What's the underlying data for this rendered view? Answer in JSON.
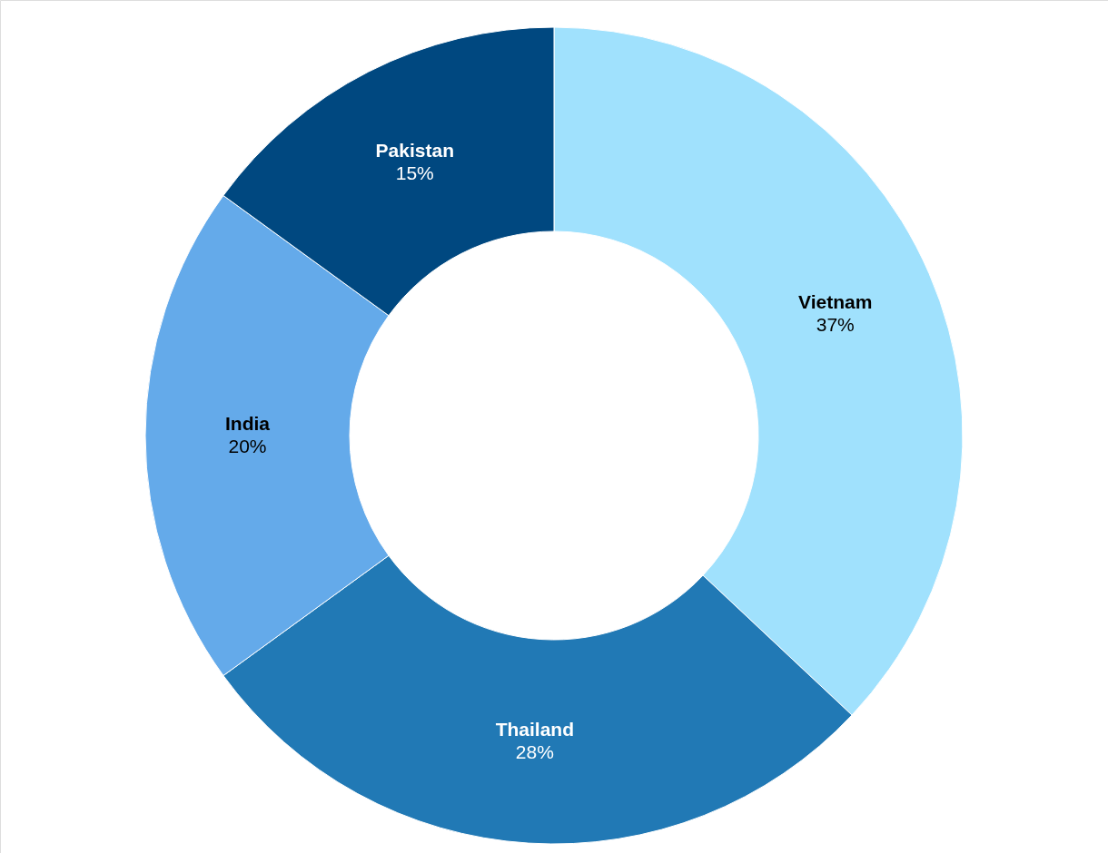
{
  "chart_data": {
    "type": "donut",
    "categories": [
      "Vietnam",
      "Thailand",
      "India",
      "Pakistan"
    ],
    "values": [
      37,
      28,
      20,
      15
    ],
    "colors": [
      "#a0e1fd",
      "#2179b5",
      "#64aaea",
      "#004880"
    ],
    "value_labels": [
      "37%",
      "28%",
      "20%",
      "15%"
    ]
  }
}
